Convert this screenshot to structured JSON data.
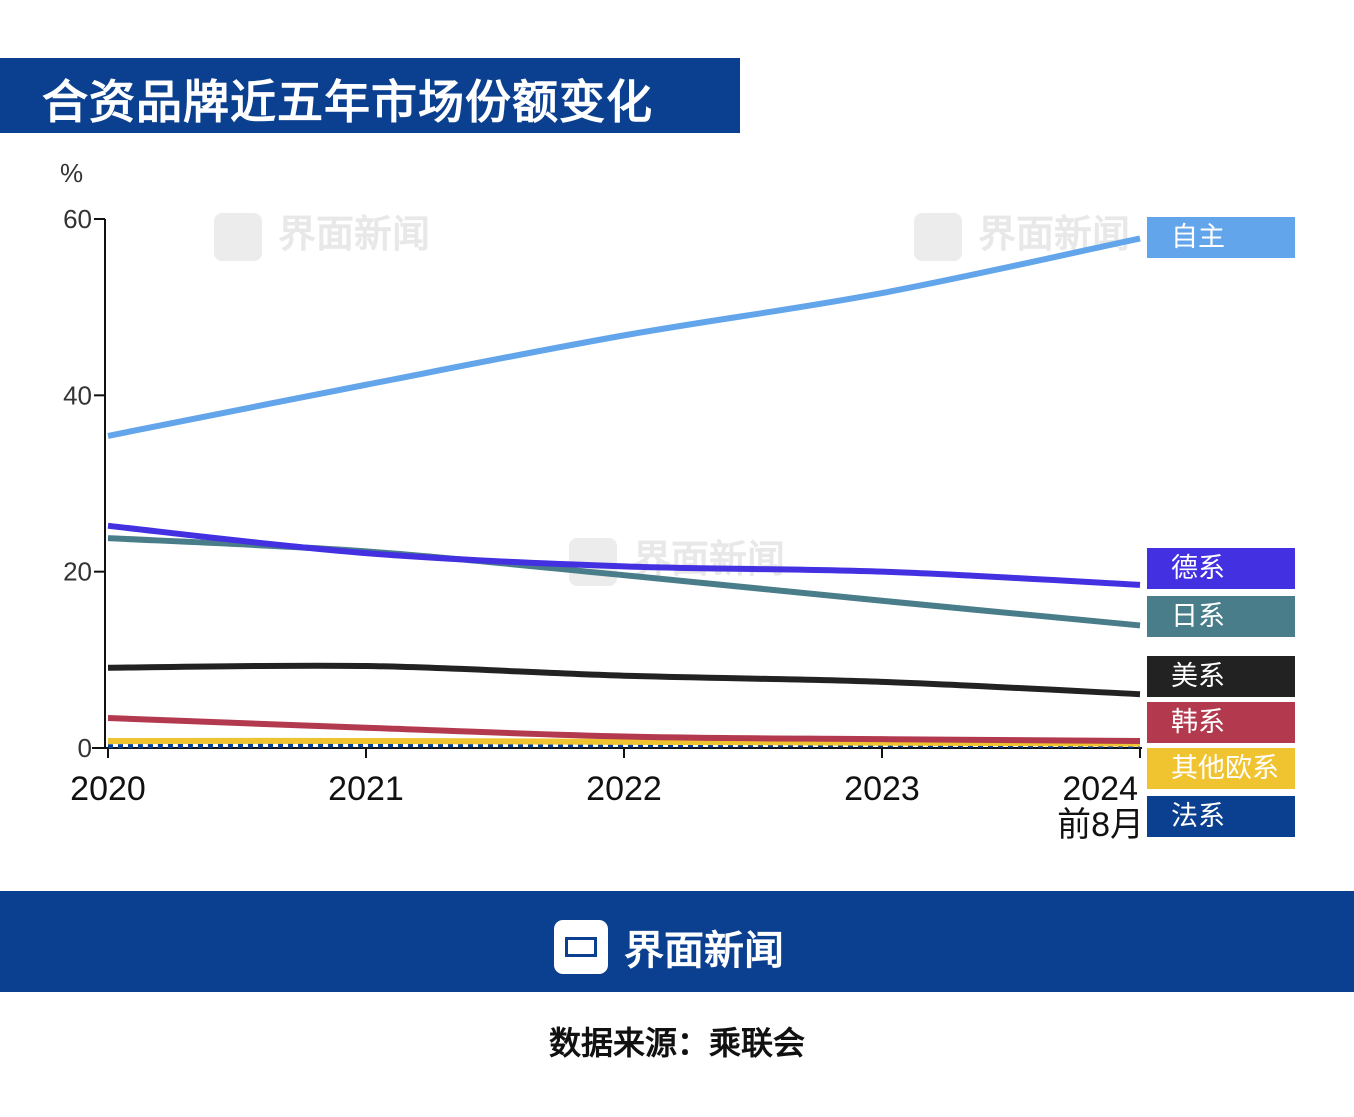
{
  "title": "合资品牌近五年市场份额变化",
  "watermark": "界面新闻",
  "footer": {
    "brand": "界面新闻",
    "source": "数据来源：乘联会"
  },
  "chart_data": {
    "type": "line",
    "title": "合资品牌近五年市场份额变化",
    "ylabel": "%",
    "xlabel": "",
    "x": [
      "2020",
      "2021",
      "2022",
      "2023",
      "2024前8月"
    ],
    "x_tick_labels": [
      "2020",
      "2021",
      "2022",
      "2023",
      "2024",
      "前8月"
    ],
    "y_ticks": [
      0,
      20,
      40,
      60
    ],
    "ylim": [
      0,
      60
    ],
    "grid": false,
    "legend": "right (end labels)",
    "series": [
      {
        "name": "自主",
        "color": "#62a5ea",
        "values": [
          35.4,
          41.2,
          46.8,
          51.6,
          57.8
        ]
      },
      {
        "name": "德系",
        "color": "#4330e0",
        "values": [
          25.2,
          22.1,
          20.6,
          20.0,
          18.5
        ]
      },
      {
        "name": "日系",
        "color": "#4a7d8a",
        "values": [
          23.8,
          22.3,
          19.6,
          16.7,
          13.9
        ]
      },
      {
        "name": "美系",
        "color": "#222222",
        "values": [
          9.1,
          9.3,
          8.2,
          7.5,
          6.1
        ]
      },
      {
        "name": "韩系",
        "color": "#b33a4e",
        "values": [
          3.4,
          2.3,
          1.3,
          1.0,
          0.8
        ]
      },
      {
        "name": "其他欧系",
        "color": "#f0c330",
        "values": [
          0.8,
          0.8,
          0.7,
          0.6,
          0.5
        ]
      },
      {
        "name": "法系",
        "color": "#0b3f8f",
        "dashed": true,
        "values": [
          0.2,
          0.3,
          0.3,
          0.3,
          0.2
        ]
      }
    ]
  }
}
